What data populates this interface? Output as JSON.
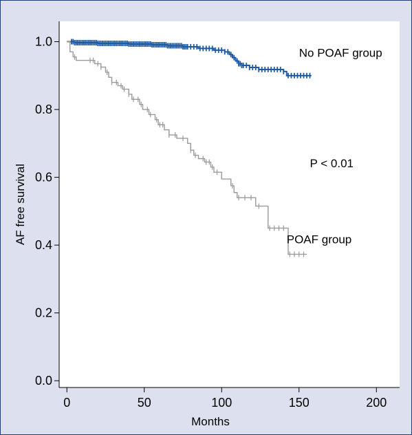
{
  "chart_data": {
    "type": "line",
    "title": "",
    "xlabel": "Months",
    "ylabel": "AF free survival",
    "xlim": [
      -5,
      215
    ],
    "ylim": [
      -0.02,
      1.06
    ],
    "x_ticks": [
      "0",
      "50",
      "100",
      "150",
      "200"
    ],
    "y_ticks": [
      "0.0",
      "0.2",
      "0.4",
      "0.6",
      "0.8",
      "1.0"
    ],
    "x_tick_values": [
      0,
      50,
      100,
      150,
      200
    ],
    "y_tick_values": [
      0.0,
      0.2,
      0.4,
      0.6,
      0.8,
      1.0
    ],
    "annotation": "P < 0.01",
    "grid": false,
    "series": [
      {
        "name": "No POAF group",
        "color": "#1f5aa0",
        "step": [
          [
            0,
            1.0
          ],
          [
            5,
            0.997
          ],
          [
            20,
            0.995
          ],
          [
            40,
            0.993
          ],
          [
            55,
            0.991
          ],
          [
            65,
            0.988
          ],
          [
            75,
            0.985
          ],
          [
            85,
            0.98
          ],
          [
            95,
            0.975
          ],
          [
            102,
            0.97
          ],
          [
            105,
            0.962
          ],
          [
            107,
            0.953
          ],
          [
            109,
            0.943
          ],
          [
            111,
            0.935
          ],
          [
            113,
            0.93
          ],
          [
            118,
            0.924
          ],
          [
            124,
            0.918
          ],
          [
            140,
            0.912
          ],
          [
            142,
            0.9
          ],
          [
            158,
            0.9
          ]
        ],
        "censor": [
          3,
          4,
          5,
          6,
          7,
          8,
          9,
          10,
          11,
          12,
          13,
          14,
          15,
          16,
          17,
          18,
          19,
          20,
          21,
          22,
          23,
          24,
          25,
          26,
          27,
          28,
          29,
          30,
          31,
          32,
          33,
          34,
          35,
          36,
          37,
          38,
          39,
          40,
          41,
          42,
          43,
          44,
          45,
          46,
          47,
          48,
          49,
          50,
          51,
          52,
          53,
          54,
          55,
          56,
          57,
          58,
          59,
          60,
          61,
          62,
          63,
          64,
          65,
          66,
          67,
          68,
          69,
          70,
          71,
          72,
          73,
          74,
          75,
          76,
          77,
          78,
          80,
          82,
          84,
          86,
          88,
          90,
          92,
          94,
          96,
          98,
          100,
          102,
          104,
          106,
          108,
          110,
          111,
          112,
          113,
          114,
          116,
          118,
          120,
          122,
          124,
          126,
          128,
          130,
          132,
          134,
          136,
          138,
          140,
          143,
          145,
          147,
          149,
          151,
          153,
          155,
          157
        ]
      },
      {
        "name": "POAF group",
        "color": "#9a9a9a",
        "step": [
          [
            0,
            1.0
          ],
          [
            2,
            0.97
          ],
          [
            4,
            0.955
          ],
          [
            6,
            0.945
          ],
          [
            18,
            0.935
          ],
          [
            22,
            0.925
          ],
          [
            25,
            0.91
          ],
          [
            27,
            0.895
          ],
          [
            29,
            0.88
          ],
          [
            33,
            0.87
          ],
          [
            36,
            0.86
          ],
          [
            40,
            0.845
          ],
          [
            42,
            0.83
          ],
          [
            47,
            0.815
          ],
          [
            49,
            0.8
          ],
          [
            53,
            0.785
          ],
          [
            57,
            0.77
          ],
          [
            59,
            0.755
          ],
          [
            63,
            0.74
          ],
          [
            66,
            0.725
          ],
          [
            71,
            0.715
          ],
          [
            78,
            0.7
          ],
          [
            80,
            0.68
          ],
          [
            82,
            0.665
          ],
          [
            85,
            0.655
          ],
          [
            89,
            0.645
          ],
          [
            93,
            0.63
          ],
          [
            95,
            0.615
          ],
          [
            100,
            0.595
          ],
          [
            106,
            0.575
          ],
          [
            108,
            0.555
          ],
          [
            110,
            0.54
          ],
          [
            122,
            0.515
          ],
          [
            130,
            0.45
          ],
          [
            143,
            0.373
          ],
          [
            155,
            0.373
          ]
        ],
        "censor": [
          5,
          15,
          17,
          20,
          22,
          26,
          29,
          32,
          35,
          37,
          40,
          43,
          46,
          48,
          52,
          54,
          58,
          60,
          62,
          66,
          70,
          75,
          80,
          83,
          88,
          90,
          92,
          94,
          97,
          107,
          111,
          115,
          119,
          124,
          131,
          134,
          137,
          140,
          144,
          147,
          150,
          153
        ]
      }
    ],
    "labels": [
      {
        "text": "No POAF group",
        "x": 150,
        "y": 0.955
      },
      {
        "text": "POAF group",
        "x": 142,
        "y": 0.405
      },
      {
        "text": "P < 0.01",
        "x": 157,
        "y": 0.63
      }
    ]
  }
}
